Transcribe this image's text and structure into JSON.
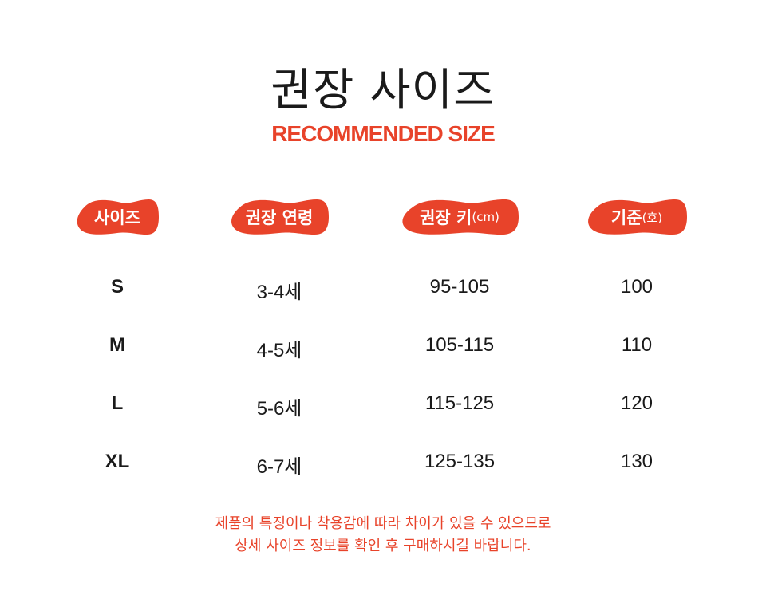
{
  "title": "권장 사이즈",
  "subtitle": "RECOMMENDED SIZE",
  "accent_color": "#e8432a",
  "headers": [
    {
      "label": "사이즈",
      "unit": ""
    },
    {
      "label": "권장 연령",
      "unit": ""
    },
    {
      "label": "권장 키",
      "unit": "(cm)"
    },
    {
      "label": "기준",
      "unit": "(호)"
    }
  ],
  "rows": [
    {
      "size": "S",
      "age": "3-4세",
      "height": "95-105",
      "standard": "100"
    },
    {
      "size": "M",
      "age": "4-5세",
      "height": "105-115",
      "standard": "110"
    },
    {
      "size": "L",
      "age": "5-6세",
      "height": "115-125",
      "standard": "120"
    },
    {
      "size": "XL",
      "age": "6-7세",
      "height": "125-135",
      "standard": "130"
    }
  ],
  "note": [
    "제품의 특징이나 착용감에 따라 차이가 있을 수 있으므로",
    "상세 사이즈 정보를 확인 후 구매하시길 바랍니다."
  ]
}
